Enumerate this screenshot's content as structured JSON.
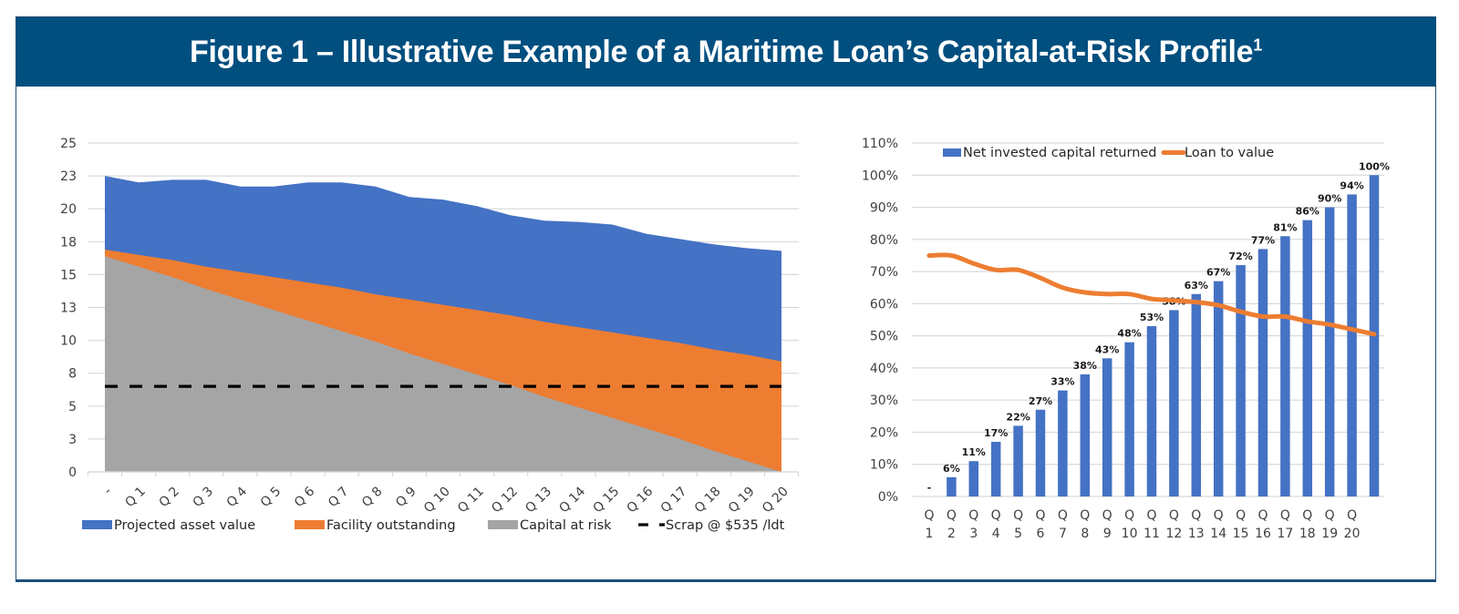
{
  "figure": {
    "title": "Figure 1 – Illustrative Example of a Maritime Loan’s Capital-at-Risk Profile",
    "title_superscript": "1",
    "colors": {
      "header_bg": "#004f7f",
      "projected_asset_value": "#4472c4",
      "facility_outstanding": "#ed7d31",
      "capital_at_risk": "#a5a5a5",
      "scrap_line": "#000000",
      "net_invested_capital_returned": "#4472c4",
      "loan_to_value": "#ed7d31"
    }
  },
  "chart_data": [
    {
      "type": "area",
      "title": "",
      "xlabel": "",
      "ylabel": "",
      "ylim": [
        0,
        25
      ],
      "y_ticks": [
        0,
        2.5,
        5,
        7.5,
        10,
        12.5,
        15,
        17.5,
        20,
        22.5,
        25
      ],
      "y_tick_labels": [
        "0",
        "3",
        "5",
        "8",
        "10",
        "13",
        "15",
        "18",
        "20",
        "23",
        "25"
      ],
      "grid": true,
      "legend_position": "bottom",
      "categories": [
        "-",
        "Q 1",
        "Q 2",
        "Q 3",
        "Q 4",
        "Q 5",
        "Q 6",
        "Q 7",
        "Q 8",
        "Q 9",
        "Q 10",
        "Q 11",
        "Q 12",
        "Q 13",
        "Q 14",
        "Q 15",
        "Q 16",
        "Q 17",
        "Q 18",
        "Q 19",
        "Q 20"
      ],
      "series": [
        {
          "name": "Projected asset value",
          "kind": "area",
          "values": [
            22.5,
            22.0,
            22.2,
            22.2,
            21.7,
            21.7,
            22.0,
            22.0,
            21.7,
            20.9,
            20.7,
            20.2,
            19.5,
            19.1,
            19.0,
            18.8,
            18.1,
            17.7,
            17.3,
            17.0,
            16.8
          ]
        },
        {
          "name": "Facility outstanding",
          "kind": "area",
          "values": [
            16.9,
            16.5,
            16.1,
            15.6,
            15.2,
            14.8,
            14.4,
            14.0,
            13.5,
            13.1,
            12.7,
            12.3,
            11.9,
            11.4,
            11.0,
            10.6,
            10.2,
            9.8,
            9.3,
            8.9,
            8.4
          ]
        },
        {
          "name": "Capital at risk",
          "kind": "area",
          "values": [
            16.4,
            15.6,
            14.8,
            13.9,
            13.1,
            12.3,
            11.5,
            10.7,
            9.9,
            9.0,
            8.2,
            7.4,
            6.6,
            5.7,
            4.9,
            4.1,
            3.3,
            2.5,
            1.6,
            0.8,
            0.0
          ]
        },
        {
          "name": "Scrap @ $535 /ldt",
          "kind": "dashed-line",
          "values": [
            6.5,
            6.5,
            6.5,
            6.5,
            6.5,
            6.5,
            6.5,
            6.5,
            6.5,
            6.5,
            6.5,
            6.5,
            6.5,
            6.5,
            6.5,
            6.5,
            6.5,
            6.5,
            6.5,
            6.5,
            6.5
          ]
        }
      ]
    },
    {
      "type": "bar",
      "title": "",
      "xlabel": "",
      "ylabel": "",
      "ylim": [
        0,
        110
      ],
      "y_ticks": [
        0,
        10,
        20,
        30,
        40,
        50,
        60,
        70,
        80,
        90,
        100,
        110
      ],
      "y_tick_labels": [
        "0%",
        "10%",
        "20%",
        "30%",
        "40%",
        "50%",
        "60%",
        "70%",
        "80%",
        "90%",
        "100%",
        "110%"
      ],
      "grid": true,
      "legend_position": "top",
      "categories": [
        [
          "Q",
          "1"
        ],
        [
          "Q",
          "2"
        ],
        [
          "Q",
          "3"
        ],
        [
          "Q",
          "4"
        ],
        [
          "Q",
          "5"
        ],
        [
          "Q",
          "6"
        ],
        [
          "Q",
          "7"
        ],
        [
          "Q",
          "8"
        ],
        [
          "Q",
          "9"
        ],
        [
          "Q",
          "10"
        ],
        [
          "Q",
          "11"
        ],
        [
          "Q",
          "12"
        ],
        [
          "Q",
          "13"
        ],
        [
          "Q",
          "14"
        ],
        [
          "Q",
          "15"
        ],
        [
          "Q",
          "16"
        ],
        [
          "Q",
          "17"
        ],
        [
          "Q",
          "18"
        ],
        [
          "Q",
          "19"
        ],
        [
          "Q",
          "20"
        ],
        [
          "",
          ""
        ]
      ],
      "series": [
        {
          "name": "Net invested capital returned",
          "kind": "bar",
          "values": [
            0,
            6,
            11,
            17,
            22,
            27,
            33,
            38,
            43,
            48,
            53,
            58,
            63,
            67,
            72,
            77,
            81,
            86,
            90,
            94,
            100
          ],
          "data_labels": [
            "-",
            "6%",
            "11%",
            "17%",
            "22%",
            "27%",
            "33%",
            "38%",
            "43%",
            "48%",
            "53%",
            "58%",
            "63%",
            "67%",
            "72%",
            "77%",
            "81%",
            "86%",
            "90%",
            "94%",
            "100%"
          ]
        },
        {
          "name": "Loan to value",
          "kind": "line",
          "values": [
            75,
            75,
            72.5,
            70.5,
            70.5,
            68,
            65,
            63.5,
            63,
            63,
            61.5,
            61,
            60.5,
            59.5,
            57.5,
            56,
            56,
            54.5,
            53.5,
            52,
            50.5
          ]
        }
      ]
    }
  ]
}
